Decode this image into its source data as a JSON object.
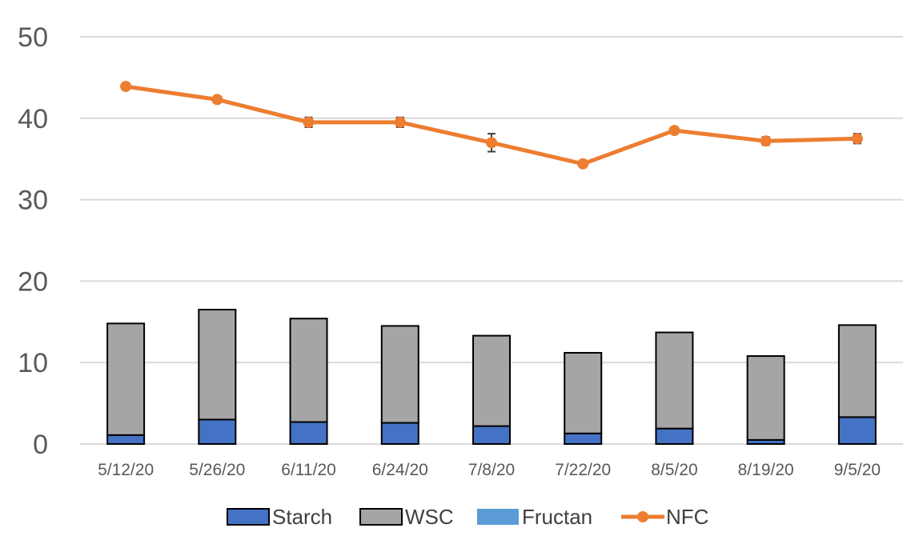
{
  "chart_data": {
    "type": "bar",
    "categories": [
      "5/12/20",
      "5/26/20",
      "6/11/20",
      "6/24/20",
      "7/8/20",
      "7/22/20",
      "8/5/20",
      "8/19/20",
      "9/5/20"
    ],
    "series": [
      {
        "name": "Starch",
        "type": "bar",
        "stack": "total",
        "values": [
          1.1,
          3.0,
          2.7,
          2.6,
          2.2,
          1.3,
          1.9,
          0.5,
          3.3
        ]
      },
      {
        "name": "WSC",
        "type": "bar",
        "stack": "total",
        "values": [
          13.7,
          13.5,
          12.7,
          11.9,
          11.1,
          9.9,
          11.8,
          10.3,
          11.3
        ]
      },
      {
        "name": "Fructan",
        "type": "bar",
        "stack": "total",
        "values": [
          0,
          0,
          0,
          0,
          0,
          0,
          0,
          0,
          0
        ]
      },
      {
        "name": "NFC",
        "type": "line",
        "values": [
          43.9,
          42.3,
          39.5,
          39.5,
          37.0,
          34.4,
          38.5,
          37.2,
          37.5
        ],
        "error": [
          0.2,
          0.2,
          0.6,
          0.6,
          1.1,
          0.4,
          0.4,
          0.5,
          0.6
        ]
      }
    ],
    "yticks": [
      0,
      10,
      20,
      30,
      40,
      50
    ],
    "ylim": [
      0,
      50
    ],
    "title": "",
    "xlabel": "",
    "ylabel": "",
    "grid": true,
    "legend_position": "bottom",
    "colors": {
      "Starch": "#4472c4",
      "WSC": "#a5a5a5",
      "Fructan": "#5b9bd5",
      "NFC": "#ed7d31",
      "grid": "#d9d9d9",
      "bar_outline": "#000000",
      "error_bar": "#404040"
    }
  }
}
